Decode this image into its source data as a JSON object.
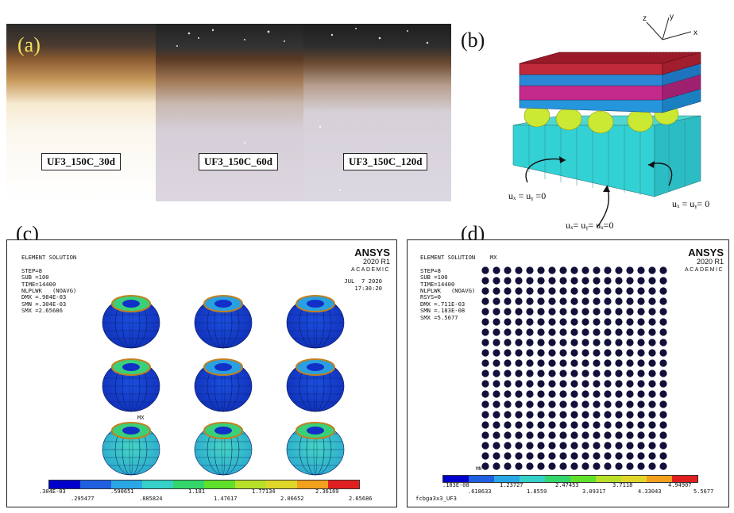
{
  "panels": {
    "a": {
      "label": "(a)",
      "samples": [
        "UF3_150C_30d",
        "UF3_150C_60d",
        "UF3_150C_120d"
      ]
    },
    "b": {
      "label": "(b)",
      "axes": {
        "x": "x",
        "y": "y",
        "z": "z"
      },
      "bc_left": "uₓ = uᵧ =0",
      "bc_bottom": "uₓ= uᵧ= uₓ=0",
      "bc_right": "uₓ = uᵧ= 0"
    },
    "c": {
      "label": "(c)",
      "info": "ELEMENT SOLUTION\n\nSTEP=8\nSUB =100\nTIME=14400\nNLPLWK   (NOAVG)\nDMX =.984E-03\nSMN =.304E-03\nSMX =2.65686",
      "brand": "ANSYS",
      "version": "2020 R1",
      "edition": "ACADEMIC",
      "date": "JUL  7 2020",
      "time": "17:30:20",
      "mx": "MX",
      "legend_top": [
        ".304E-03",
        ".590651",
        "1.181",
        "1.77134",
        "2.36169"
      ],
      "legend_bottom": [
        ".295477",
        ".885824",
        "1.47617",
        "2.06652",
        "2.65686"
      ],
      "colors": [
        "#0000cc",
        "#1f5fe0",
        "#2aa7e6",
        "#35d0c8",
        "#33d66a",
        "#5fe02a",
        "#b8e02a",
        "#e0d62a",
        "#f2a01e",
        "#e02020"
      ]
    },
    "d": {
      "label": "(d)",
      "info": "ELEMENT SOLUTION\n\nSTEP=8\nSUB =100\nTIME=14400\nNLPLWK   (NOAVG)\nRSYS=0\nDMX =.711E-03\nSMN =.183E-08\nSMX =5.5677",
      "brand": "ANSYS",
      "version": "2020 R1",
      "edition": "ACADEMIC",
      "mx_top": "MX",
      "mx_bottom": "MN",
      "legend_top": [
        ".183E-08",
        "1.23727",
        "2.47453",
        "3.7118",
        "4.94907"
      ],
      "legend_bottom": [
        ".618633",
        "1.8559",
        "3.09317",
        "4.33043",
        "5.5677"
      ],
      "footer": "fcbga3x3_UF3",
      "grid": {
        "rows": 20,
        "cols": 17
      }
    }
  }
}
